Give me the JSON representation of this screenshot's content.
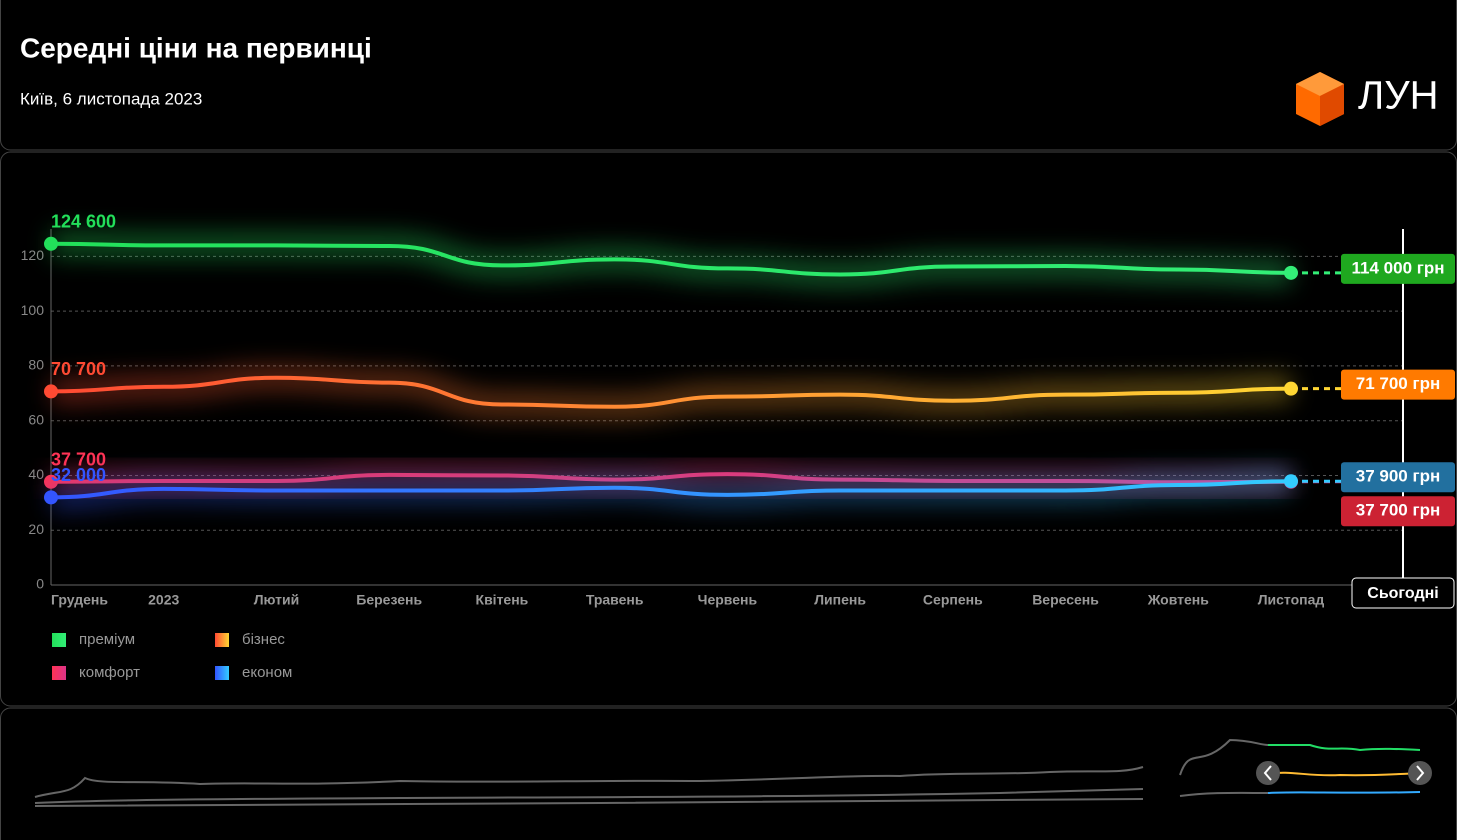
{
  "header": {
    "title": "Середні ціни на первинці",
    "subtitle": "Київ, 6 листопада 2023",
    "logo": "ЛУН"
  },
  "chart_data": {
    "type": "line",
    "categories": [
      "Грудень",
      "2023",
      "Лютий",
      "Березень",
      "Квітень",
      "Травень",
      "Червень",
      "Липень",
      "Серпень",
      "Вересень",
      "Жовтень",
      "Листопад"
    ],
    "ylim": [
      0,
      130
    ],
    "yticks": [
      0,
      20,
      40,
      60,
      80,
      100,
      120
    ],
    "grid": true,
    "today_label": "Сьогодні",
    "series": [
      {
        "name": "преміум",
        "colors": [
          "#22e05a",
          "#33ee77"
        ],
        "badge_color": "#1fa81f",
        "values": [
          124.6,
          124,
          124,
          123.8,
          116.7,
          118.9,
          115.6,
          113.4,
          116.3,
          116.5,
          115.2,
          114
        ],
        "value_labels": [
          "124 600",
          null,
          null,
          null,
          null,
          null,
          null,
          null,
          null,
          null,
          null,
          "114 000 грн"
        ]
      },
      {
        "name": "бізнес",
        "colors": [
          "#ff4a33",
          "#ffd633"
        ],
        "badge_color": "#ff7a00",
        "values": [
          70.7,
          72.4,
          75.7,
          73.9,
          65.9,
          65.1,
          68.8,
          69.5,
          67.3,
          69.5,
          70.2,
          71.7
        ],
        "value_labels": [
          "70 700",
          null,
          null,
          null,
          null,
          null,
          null,
          null,
          null,
          null,
          null,
          "71 700 грн"
        ]
      },
      {
        "name": "комфорт",
        "colors": [
          "#ff3355",
          "#dd3388"
        ],
        "badge_color": "#cc2233",
        "values": [
          37.7,
          38,
          38,
          40.2,
          40,
          38.5,
          40.5,
          38.5,
          38,
          38,
          37.5,
          37.7
        ],
        "value_labels": [
          "37 700",
          null,
          null,
          null,
          null,
          null,
          null,
          null,
          null,
          null,
          null,
          "37 700 грн"
        ]
      },
      {
        "name": "економ",
        "colors": [
          "#3355ff",
          "#33ccff"
        ],
        "badge_color": "#22709f",
        "values": [
          32,
          35.1,
          34.5,
          34.5,
          34.5,
          35.5,
          32.9,
          34.5,
          34.5,
          34.5,
          36.5,
          37.9
        ],
        "value_labels": [
          "32 000",
          null,
          null,
          null,
          null,
          null,
          null,
          null,
          null,
          null,
          null,
          "37 900 грн"
        ]
      }
    ]
  }
}
